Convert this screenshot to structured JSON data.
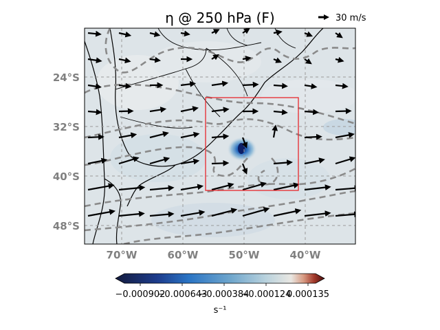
{
  "title": "η @ 250 hPa (F)",
  "quiver_key": {
    "label": "30 m/s"
  },
  "lat_labels": [
    "24°S",
    "32°S",
    "40°S",
    "48°S"
  ],
  "lon_labels": [
    "70°W",
    "60°W",
    "50°W",
    "40°W"
  ],
  "colorbar": {
    "ticks": [
      "−0.000902",
      "−0.000643",
      "−0.000384",
      "−0.000124",
      "0.000135"
    ],
    "unit": "s⁻¹",
    "colors": [
      "#141b3e",
      "#1d3c8c",
      "#2a74c4",
      "#6fa6cc",
      "#b9d2dd",
      "#e9e7e2",
      "#d79a82",
      "#a33a2c",
      "#4a0c0c"
    ]
  },
  "map": {
    "background": "#dde4e8",
    "contour_color": "#8a8a8a",
    "box_color": "#e8262b",
    "grid_color": "#9a9a9a"
  }
}
